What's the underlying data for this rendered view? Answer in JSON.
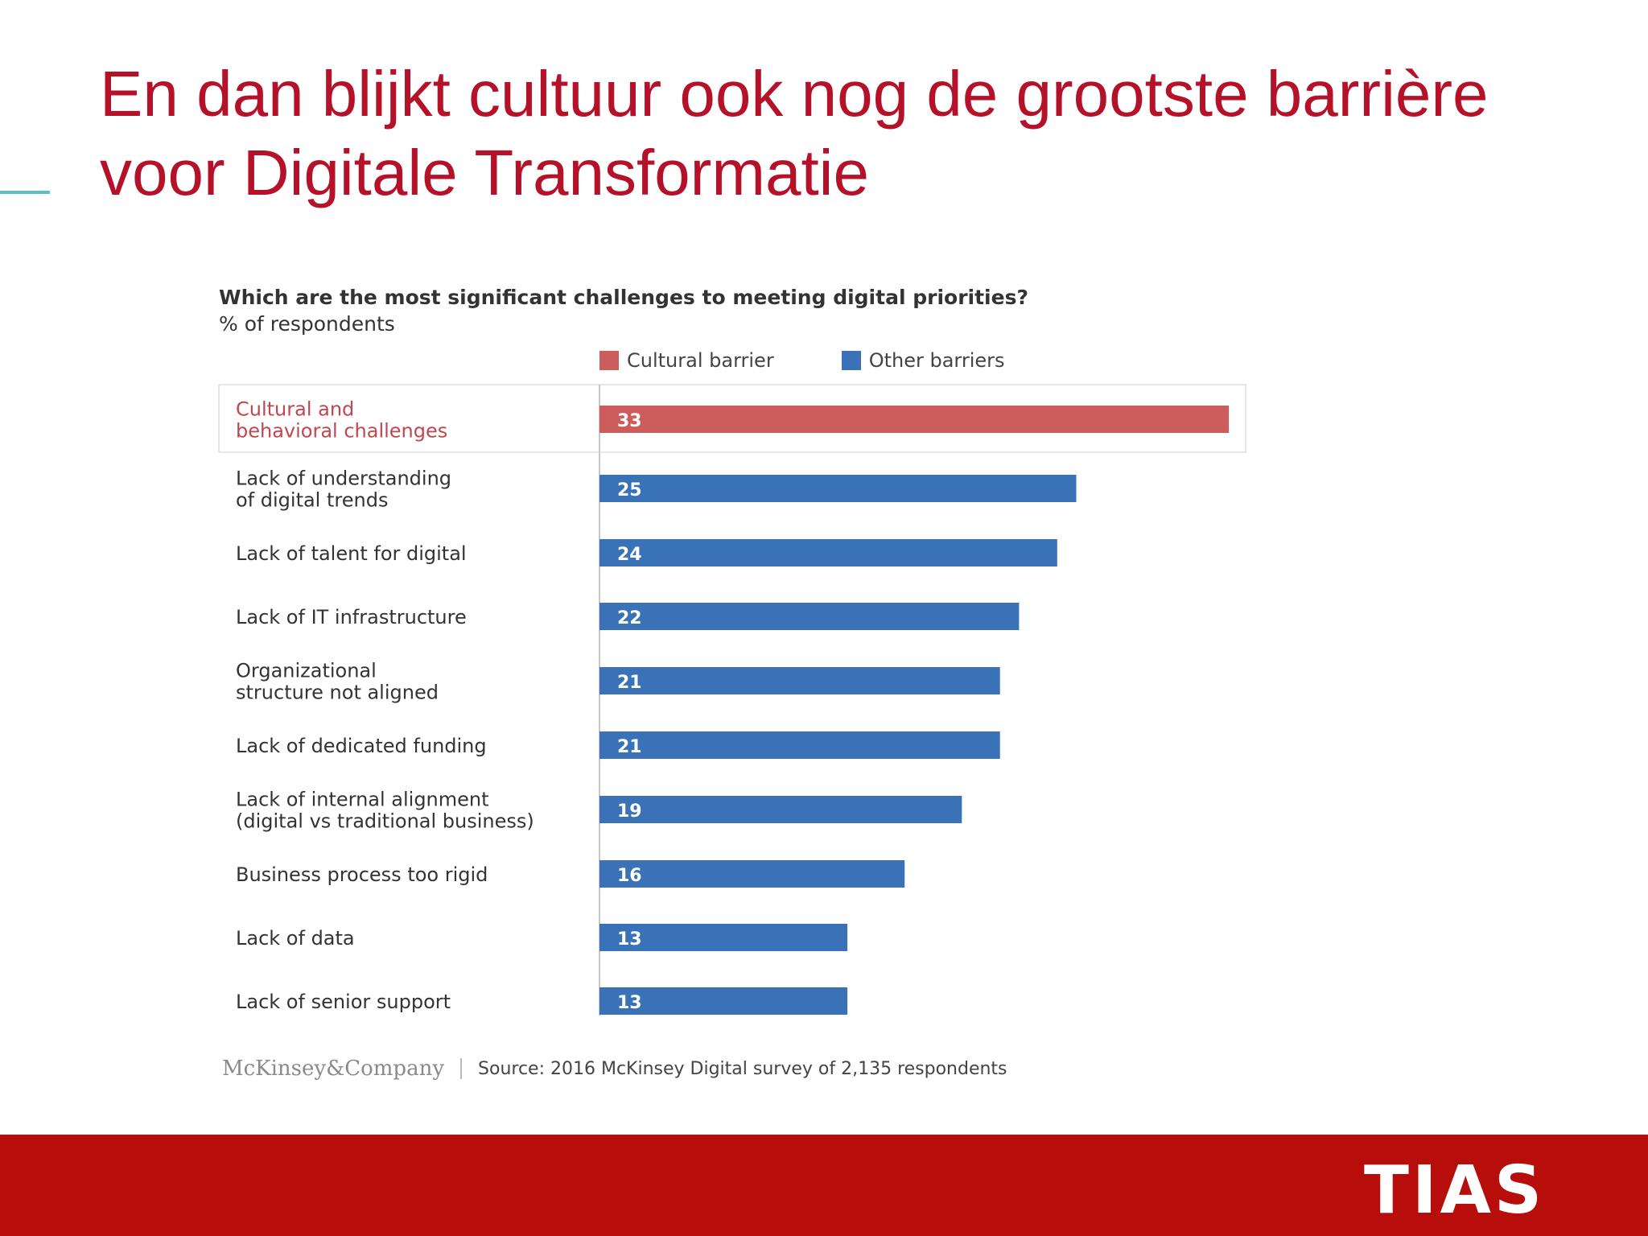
{
  "slide": {
    "title_line1": "En dan blijkt cultuur ook nog de grootste barrière",
    "title_line2": "voor Digitale Transformatie",
    "accent_color": "#5bbfc0",
    "title_color": "#b5122a"
  },
  "chart_data": {
    "type": "bar",
    "orientation": "horizontal",
    "title": "Which are the most significant challenges to meeting digital priorities?",
    "subtitle": "% of respondents",
    "legend": [
      {
        "label": "Cultural barrier",
        "color": "#cd5c5c"
      },
      {
        "label": "Other barriers",
        "color": "#3a72b8"
      }
    ],
    "legend_placement": "top",
    "categories": [
      [
        "Cultural and",
        "behavioral challenges"
      ],
      [
        "Lack of understanding",
        "of digital trends"
      ],
      [
        "Lack of talent for digital"
      ],
      [
        "Lack of IT infrastructure"
      ],
      [
        "Organizational",
        "structure not aligned"
      ],
      [
        "Lack of dedicated funding"
      ],
      [
        "Lack of internal alignment",
        "(digital vs traditional business)"
      ],
      [
        "Business process too rigid"
      ],
      [
        "Lack of data"
      ],
      [
        "Lack of senior support"
      ]
    ],
    "values": [
      33,
      25,
      24,
      22,
      21,
      21,
      19,
      16,
      13,
      13
    ],
    "series_index": [
      0,
      1,
      1,
      1,
      1,
      1,
      1,
      1,
      1,
      1
    ],
    "highlight_label_color": "#c0474f",
    "label_color": "#333333",
    "value_labels": true,
    "grid": false
  },
  "source": {
    "logo": "McKinsey&Company",
    "text": "Source: 2016 McKinsey Digital survey of 2,135 respondents"
  },
  "footer": {
    "brand": "TIAS",
    "bar_color": "#b70e0c"
  }
}
